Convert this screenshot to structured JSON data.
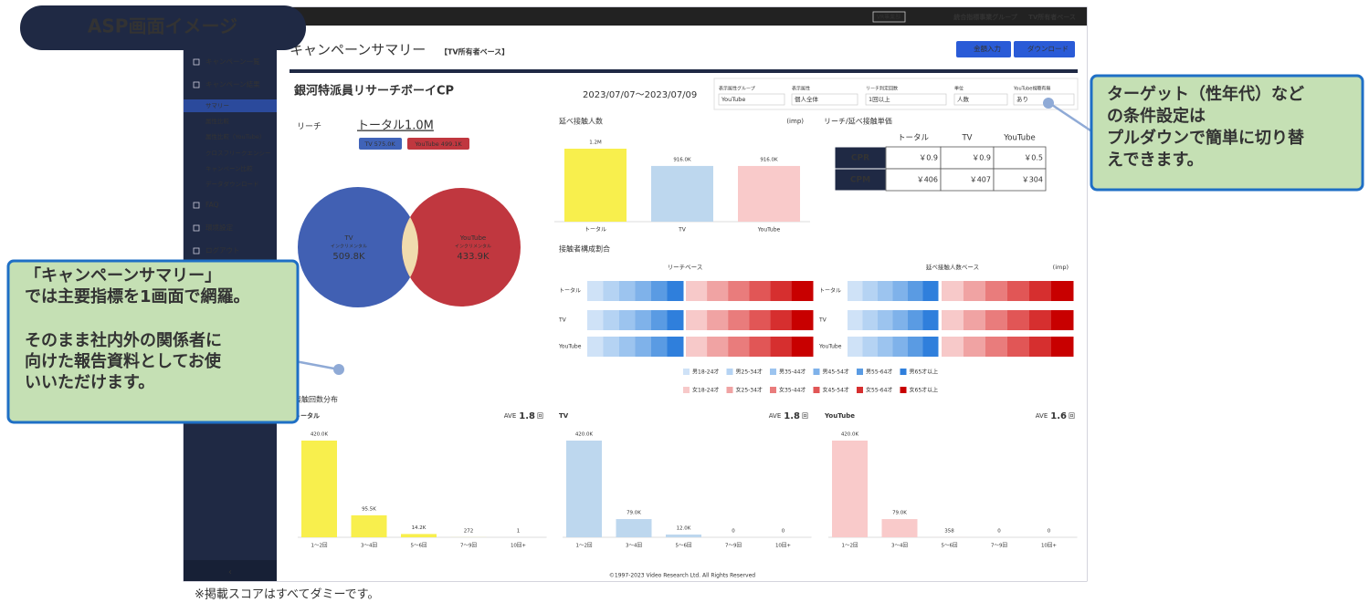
{
  "badge": "ASP画面イメージ",
  "topbar": {
    "button": "VR事業部",
    "group": "統合指標事業グループ",
    "base": "TV所有者ベース"
  },
  "sidebar": {
    "items": [
      "キャンペーン一覧",
      "キャンペーン結果",
      "サマリー",
      "属性比較",
      "属性比較（YouTube）",
      "クロスフリークエンシー",
      "キャンペーン比較",
      "データダウンロード",
      "FAQ",
      "環境設定",
      "ログアウト"
    ]
  },
  "header": {
    "title": "キャンペーンサマリー",
    "subtitle": "【TV所有者ベース】",
    "buttons": [
      "金額入力",
      "ダウンロード"
    ]
  },
  "campaign": {
    "name": "銀河特派員リサーチボーイCP",
    "period": "2023/07/07～2023/07/09"
  },
  "filters": [
    {
      "label": "表示属性グループ",
      "value": "YouTube"
    },
    {
      "label": "表示属性",
      "value": "個人全体"
    },
    {
      "label": "リーチ判定回数",
      "value": "1回以上"
    },
    {
      "label": "単位",
      "value": "人数"
    },
    {
      "label": "YouTube視聴有無",
      "value": "あり"
    }
  ],
  "reach": {
    "label": "リーチ",
    "total": "トータル1.0M",
    "tv_badge": "TV 575.0K",
    "youtube_badge": "YouTube 499.1K",
    "tv": {
      "name": "TV",
      "sub": "インクリメンタル",
      "value": "509.8K"
    },
    "youtube": {
      "name": "YouTube",
      "sub": "インクリメンタル",
      "value": "433.9K"
    }
  },
  "impressions": {
    "title": "延べ接触人数",
    "unit": "(imp)",
    "categories": [
      "トータル",
      "TV",
      "YouTube"
    ],
    "values": [
      1200000,
      916000,
      916000
    ],
    "value_labels": [
      "1.2M",
      "916.0K",
      "916.0K"
    ],
    "colors": [
      "#f8ef4d",
      "#bdd7ee",
      "#f9caca"
    ]
  },
  "cost": {
    "title": "リーチ/延べ接触単価",
    "columns": [
      "トータル",
      "TV",
      "YouTube"
    ],
    "rows": [
      {
        "name": "CPR",
        "cells": [
          "￥0.9",
          "￥0.9",
          "￥0.5"
        ]
      },
      {
        "name": "CPM",
        "cells": [
          "￥406",
          "￥407",
          "￥304"
        ]
      }
    ]
  },
  "composition": {
    "title": "接触者構成割合",
    "panels": [
      {
        "title": "リーチベース"
      },
      {
        "title": "延べ接触人数ベース",
        "unit": "(imp)"
      }
    ],
    "categories": [
      "トータル",
      "TV",
      "YouTube"
    ],
    "legend_male": [
      "男18-24才",
      "男25-34才",
      "男35-44才",
      "男45-54才",
      "男55-64才",
      "男65才以上"
    ],
    "legend_female": [
      "女18-24才",
      "女25-34才",
      "女35-44才",
      "女45-54才",
      "女55-64才",
      "女65才以上"
    ],
    "male_colors": [
      "#cfe2f7",
      "#b5d3f3",
      "#9cc4ef",
      "#7fb2ea",
      "#5a9be3",
      "#2f7fdc"
    ],
    "female_colors": [
      "#f7c9c9",
      "#f0a3a3",
      "#e97c7c",
      "#e15656",
      "#d62f2f",
      "#c80000"
    ]
  },
  "frequency": {
    "title": "接触回数分布",
    "categories": [
      "1～2回",
      "3～4回",
      "5～6回",
      "7～9回",
      "10回+"
    ],
    "ave_label": "AVE",
    "ave_unit": "回",
    "panels": [
      {
        "name": "トータル",
        "ave": 1.8,
        "color": "#f8ef4d",
        "values": [
          420000,
          95500,
          14200,
          272,
          1
        ],
        "value_labels": [
          "420.0K",
          "95.5K",
          "14.2K",
          "272",
          "1"
        ]
      },
      {
        "name": "TV",
        "ave": 1.8,
        "color": "#bdd7ee",
        "values": [
          420000,
          79000,
          12000,
          0,
          0
        ],
        "value_labels": [
          "420.0K",
          "79.0K",
          "12.0K",
          "0",
          "0"
        ]
      },
      {
        "name": "YouTube",
        "ave": 1.6,
        "color": "#f9caca",
        "values": [
          420000,
          79000,
          358,
          0,
          0
        ],
        "value_labels": [
          "420.0K",
          "79.0K",
          "358",
          "0",
          "0"
        ]
      }
    ]
  },
  "footer": "©1997-2023 Video Research Ltd. All Rights Reserved",
  "callouts": {
    "right": {
      "lines": [
        "ターゲット（性年代）など",
        "の条件設定は",
        "プルダウンで簡単に切り替",
        "えできます。"
      ]
    },
    "left": {
      "paragraphs": [
        [
          "「キャンペーンサマリー」",
          "では主要指標を1画面で網羅。"
        ],
        [
          "そのまま社内外の関係者に",
          "向けた報告資料としてお使",
          "いいただけます。"
        ]
      ]
    }
  },
  "note": "※掲載スコアはすべてダミーです。"
}
